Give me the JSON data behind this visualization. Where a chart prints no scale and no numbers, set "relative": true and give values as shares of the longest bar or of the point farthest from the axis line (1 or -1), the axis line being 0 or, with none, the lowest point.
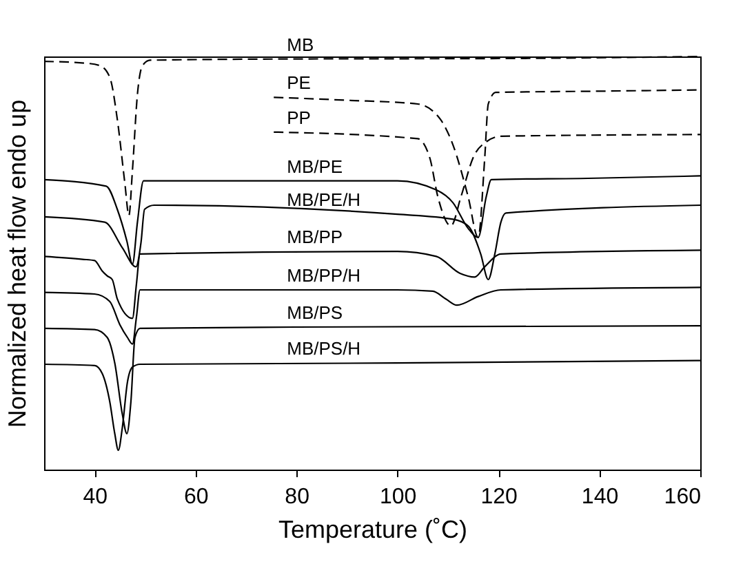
{
  "chart_data": {
    "type": "line",
    "relative": true,
    "xlabel": "Temperature (˚C)",
    "ylabel": "Normalized heat flow endo up",
    "xlim": [
      30,
      160
    ],
    "xticks": [
      40,
      60,
      80,
      100,
      120,
      140,
      160
    ],
    "grid": false,
    "legend": false,
    "marker": "none",
    "series": [
      {
        "name": "MB",
        "color": "#000000",
        "line_style": "dashed",
        "x": [
          30,
          38,
          41,
          43,
          44.5,
          46,
          46.8,
          47.5,
          48.5,
          49.5,
          51,
          80,
          120,
          160
        ],
        "values": [
          0.988,
          0.984,
          0.978,
          0.95,
          0.848,
          0.693,
          0.615,
          0.724,
          0.91,
          0.978,
          0.991,
          0.994,
          0.995,
          1
        ]
      },
      {
        "name": "PE",
        "color": "#000000",
        "line_style": "dashed",
        "x": [
          75.5,
          90,
          104,
          108.5,
          111,
          114,
          116,
          117.3,
          118,
          119.5,
          140,
          160
        ],
        "values": [
          0.901,
          0.894,
          0.885,
          0.848,
          0.786,
          0.661,
          0.562,
          0.755,
          0.885,
          0.913,
          0.916,
          0.919
        ]
      },
      {
        "name": "PP",
        "color": "#000000",
        "line_style": "dashed",
        "x": [
          75.5,
          104,
          106.4,
          108,
          110.6,
          112.6,
          115,
          117.8,
          120.5,
          160
        ],
        "values": [
          0.817,
          0.801,
          0.755,
          0.661,
          0.59,
          0.661,
          0.755,
          0.795,
          0.807,
          0.811
        ]
      },
      {
        "name": "MB/PE",
        "color": "#000000",
        "line_style": "solid",
        "x": [
          30,
          42.3,
          44.5,
          46.4,
          47.5,
          48.5,
          49.7,
          100,
          107.7,
          111,
          114,
          116,
          117.6,
          118.6,
          137.7,
          160
        ],
        "values": [
          0.702,
          0.686,
          0.63,
          0.553,
          0.497,
          0.6,
          0.699,
          0.699,
          0.677,
          0.646,
          0.584,
          0.562,
          0.661,
          0.702,
          0.705,
          0.711
        ]
      },
      {
        "name": "MB/PE/H",
        "color": "#000000",
        "line_style": "solid",
        "x": [
          30,
          42,
          45.5,
          48.2,
          49.2,
          49.9,
          51.8,
          100,
          111,
          114,
          116.5,
          118,
          119.3,
          120.5,
          121.5,
          160
        ],
        "values": [
          0.612,
          0.599,
          0.537,
          0.491,
          0.55,
          0.63,
          0.64,
          0.618,
          0.606,
          0.59,
          0.522,
          0.46,
          0.522,
          0.599,
          0.621,
          0.64
        ]
      },
      {
        "name": "MB/PP",
        "color": "#000000",
        "line_style": "solid",
        "x": [
          30,
          37.6,
          40,
          41.5,
          42.5,
          43.5,
          44.5,
          47.5,
          48.3,
          49,
          100,
          107.7,
          112.4,
          115.3,
          117.3,
          120.5,
          160
        ],
        "values": [
          0.516,
          0.509,
          0.506,
          0.481,
          0.469,
          0.46,
          0.413,
          0.366,
          0.45,
          0.522,
          0.528,
          0.516,
          0.475,
          0.466,
          0.491,
          0.522,
          0.531
        ]
      },
      {
        "name": "MB/PP/H",
        "color": "#000000",
        "line_style": "solid",
        "x": [
          30,
          40,
          43,
          45,
          46.5,
          47.5,
          48.3,
          49,
          100,
          107,
          109.6,
          111.8,
          116,
          120.5,
          160
        ],
        "values": [
          0.429,
          0.425,
          0.407,
          0.351,
          0.32,
          0.304,
          0.37,
          0.435,
          0.435,
          0.432,
          0.413,
          0.398,
          0.419,
          0.435,
          0.441
        ]
      },
      {
        "name": "MB/PS",
        "color": "#000000",
        "line_style": "solid",
        "x": [
          30,
          40,
          42.5,
          44,
          45.5,
          46.4,
          47.2,
          48,
          49,
          80,
          160
        ],
        "values": [
          0.342,
          0.339,
          0.32,
          0.258,
          0.134,
          0.087,
          0.165,
          0.32,
          0.342,
          0.345,
          0.348
        ]
      },
      {
        "name": "MB/PS/H",
        "color": "#000000",
        "line_style": "solid",
        "x": [
          30,
          40,
          41.5,
          43,
          44,
          44.7,
          45.5,
          46.5,
          47.5,
          49,
          100,
          160
        ],
        "values": [
          0.255,
          0.252,
          0.233,
          0.165,
          0.087,
          0.047,
          0.102,
          0.211,
          0.248,
          0.255,
          0.258,
          0.264
        ]
      }
    ]
  }
}
